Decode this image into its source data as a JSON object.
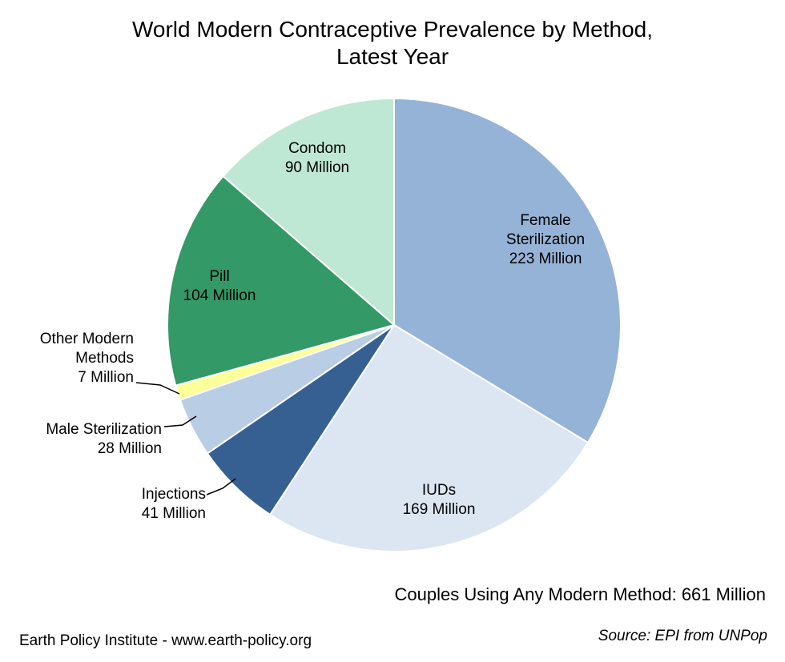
{
  "chart_data": {
    "type": "pie",
    "title": "World Modern Contraceptive Prevalence by Method,",
    "subtitle": "Latest Year",
    "slices": [
      {
        "name": "Female Sterilization",
        "value": 223,
        "value_label": "223 Million",
        "label_lines": [
          "Female",
          "Sterilization",
          "223 Million"
        ],
        "color": "#95b3d7"
      },
      {
        "name": "IUDs",
        "value": 169,
        "value_label": "169 Million",
        "label_lines": [
          "IUDs",
          "169 Million"
        ],
        "color": "#dce6f2"
      },
      {
        "name": "Injections",
        "value": 41,
        "value_label": "41 Million",
        "label_lines": [
          "Injections",
          "41 Million"
        ],
        "color": "#376092"
      },
      {
        "name": "Male Sterilization",
        "value": 28,
        "value_label": "28 Million",
        "label_lines": [
          "Male Sterilization",
          "28 Million"
        ],
        "color": "#b9cde5"
      },
      {
        "name": "Other Modern Methods",
        "value": 7,
        "value_label": "7 Million",
        "label_lines": [
          "Other Modern",
          "Methods",
          "7 Million"
        ],
        "color": "#ffff99"
      },
      {
        "name": "Pill",
        "value": 104,
        "value_label": "104 Million",
        "label_lines": [
          "Pill",
          "104 Million"
        ],
        "color": "#339966"
      },
      {
        "name": "Condom",
        "value": 90,
        "value_label": "90 Million",
        "label_lines": [
          "Condom",
          "90 Million"
        ],
        "color": "#bfe8d4"
      }
    ],
    "total_note": "Couples Using Any Modern Method: 661 Million"
  },
  "footer": {
    "credit": "Earth Policy Institute - www.earth-policy.org",
    "source": "Source: EPI from UNPop"
  }
}
